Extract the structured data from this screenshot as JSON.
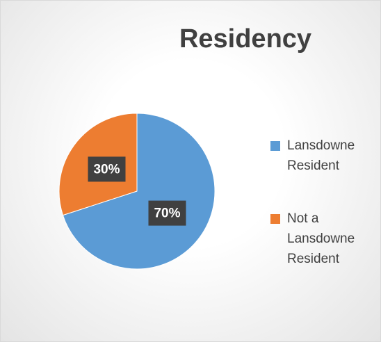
{
  "chart_data": {
    "type": "pie",
    "title": "Residency",
    "categories": [
      "Lansdowne Resident",
      "Not a Lansdowne Resident"
    ],
    "values": [
      70,
      30
    ],
    "value_labels": [
      "70%",
      "30%"
    ],
    "colors": [
      "#5b9bd5",
      "#ed7d31"
    ]
  }
}
